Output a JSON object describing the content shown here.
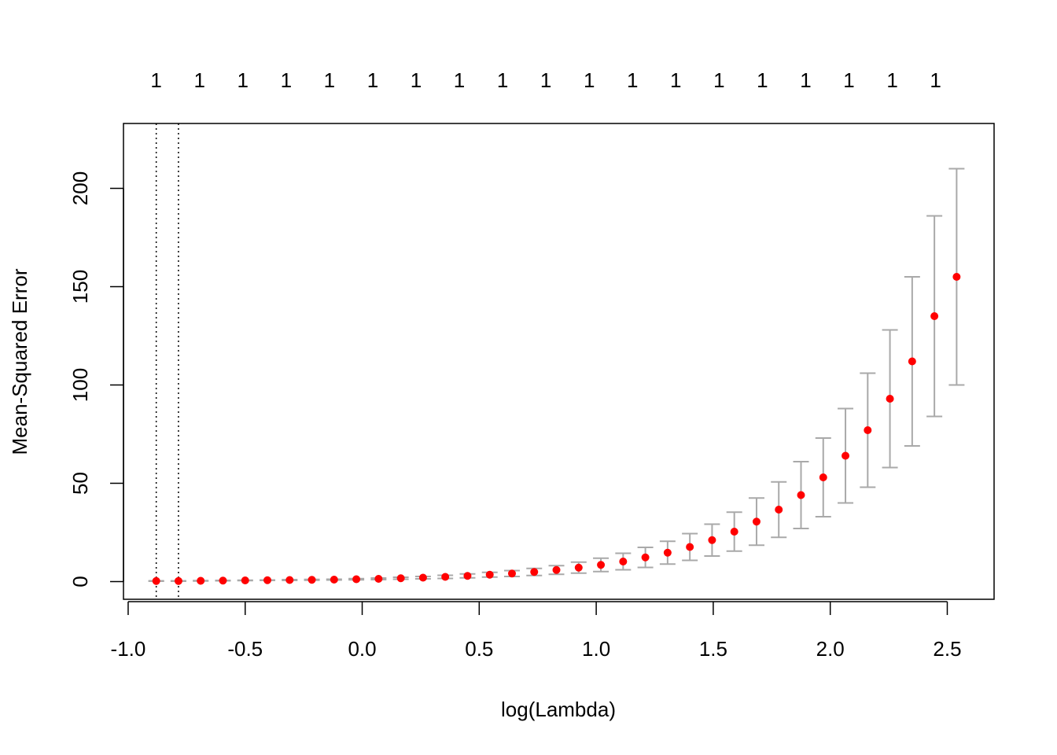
{
  "chart_data": {
    "type": "scatter",
    "title": "",
    "xlabel": "log(Lambda)",
    "ylabel": "Mean-Squared Error",
    "xlim": [
      -1.02,
      2.7
    ],
    "ylim": [
      -9,
      233
    ],
    "x_ticks": [
      -1.0,
      -0.5,
      0.0,
      0.5,
      1.0,
      1.5,
      2.0,
      2.5
    ],
    "x_tick_labels": [
      "-1.0",
      "-0.5",
      "0.0",
      "0.5",
      "1.0",
      "1.5",
      "2.0",
      "2.5"
    ],
    "y_ticks": [
      0,
      50,
      100,
      150,
      200
    ],
    "y_tick_labels": [
      "0",
      "50",
      "100",
      "150",
      "200"
    ],
    "top_axis": {
      "labels": [
        "1",
        "1",
        "1",
        "1",
        "1",
        "1",
        "1",
        "1",
        "1",
        "1",
        "1",
        "1",
        "1",
        "1",
        "1",
        "1",
        "1",
        "1",
        "1"
      ],
      "x": [
        -0.88,
        -0.695,
        -0.51,
        -0.325,
        -0.14,
        0.045,
        0.23,
        0.415,
        0.6,
        0.785,
        0.97,
        1.155,
        1.34,
        1.525,
        1.71,
        1.895,
        2.08,
        2.265,
        2.45
      ]
    },
    "vlines": [
      -0.88,
      -0.785
    ],
    "grid": false,
    "point_color": "#ff0000",
    "errorbar_color": "#a9a9a9",
    "series": [
      {
        "x": [
          -0.88,
          -0.785,
          -0.69,
          -0.595,
          -0.5,
          -0.405,
          -0.31,
          -0.215,
          -0.12,
          -0.025,
          0.07,
          0.165,
          0.26,
          0.355,
          0.45,
          0.545,
          0.64,
          0.735,
          0.83,
          0.925,
          1.02,
          1.115,
          1.21,
          1.305,
          1.4,
          1.495,
          1.59,
          1.685,
          1.78,
          1.875,
          1.97,
          2.065,
          2.16,
          2.255,
          2.35,
          2.445,
          2.54
        ],
        "y": [
          0.3,
          0.3,
          0.4,
          0.5,
          0.6,
          0.7,
          0.8,
          0.9,
          1.0,
          1.2,
          1.4,
          1.7,
          2.0,
          2.4,
          2.9,
          3.5,
          4.1,
          4.9,
          5.9,
          7.1,
          8.5,
          10.2,
          12.3,
          14.7,
          17.6,
          21.1,
          25.4,
          30.5,
          36.6,
          44.0,
          53.0,
          64.0,
          77.0,
          93.0,
          112.0,
          135.0,
          155.0
        ],
        "y_lower": [
          0.2,
          0.2,
          0.3,
          0.4,
          0.5,
          0.6,
          0.6,
          0.7,
          0.8,
          0.9,
          1.0,
          1.2,
          1.4,
          1.6,
          1.9,
          2.3,
          2.6,
          3.1,
          3.7,
          4.3,
          5.1,
          6.0,
          7.2,
          8.9,
          10.8,
          13.0,
          15.5,
          18.5,
          22.5,
          27.0,
          33.0,
          40.0,
          48.0,
          58.0,
          69.0,
          84.0,
          100.0
        ],
        "y_upper": [
          0.4,
          0.4,
          0.5,
          0.6,
          0.7,
          0.8,
          1.0,
          1.1,
          1.2,
          1.5,
          1.8,
          2.2,
          2.6,
          3.2,
          3.9,
          4.7,
          5.6,
          6.7,
          8.1,
          9.9,
          11.9,
          14.4,
          17.4,
          20.5,
          24.4,
          29.2,
          35.3,
          42.5,
          50.7,
          61.0,
          73.0,
          88.0,
          106.0,
          128.0,
          155.0,
          186.0,
          210.0
        ]
      }
    ]
  }
}
